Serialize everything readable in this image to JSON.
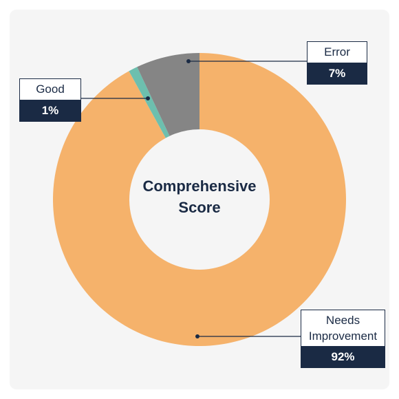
{
  "chart_data": {
    "type": "pie",
    "title": "",
    "center_label": [
      "Comprehensive",
      "Score"
    ],
    "slices": [
      {
        "name": "Needs Improvement",
        "value": 92,
        "display": "92%",
        "color": "#f5b26b"
      },
      {
        "name": "Good",
        "value": 1,
        "display": "1%",
        "color": "#6dbfae"
      },
      {
        "name": "Error",
        "value": 7,
        "display": "7%",
        "color": "#858585"
      }
    ],
    "legend": "callouts"
  },
  "colors": {
    "background": "#f5f5f5",
    "label_dark": "#1a2a44",
    "leader_line": "#1a2a44"
  }
}
